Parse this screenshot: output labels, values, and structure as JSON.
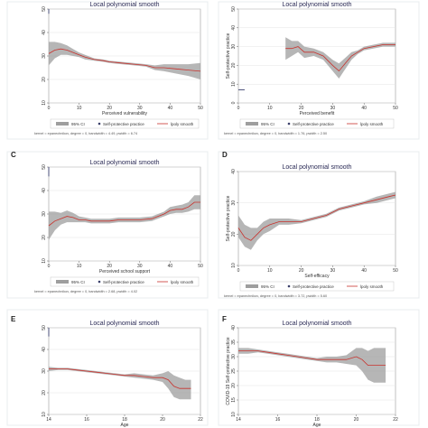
{
  "colors": {
    "band": "#9e9e9e",
    "line": "#c8322d",
    "frame": "#e8ecef"
  },
  "chart_data": [
    {
      "panel": "",
      "type": "line",
      "title": "Local polynomial smooth",
      "xlabel": "Perceived vulnerability",
      "ylabel": "",
      "xlim": [
        0,
        50
      ],
      "ylim": [
        10,
        50
      ],
      "xticks": [
        "0",
        "10",
        "20",
        "30",
        "40",
        "50"
      ],
      "yticks": [
        "10",
        "20",
        "30",
        "40",
        "50"
      ],
      "grid": true,
      "legend_position": "bottom",
      "legend": [
        "95% CI",
        "Self-protective practice",
        "lpoly smooth"
      ],
      "note": "kernel = epanechnikov, degree = 0, bandwidth = 4.49, pwidth = 6.74",
      "series": [
        {
          "x": [
            0,
            2,
            4,
            6,
            8,
            10,
            12,
            15,
            18,
            20,
            24,
            28,
            32,
            35,
            38,
            42,
            46,
            50
          ],
          "y": [
            31,
            32.5,
            33,
            32.5,
            31.5,
            30.5,
            29.5,
            28.5,
            28,
            27.5,
            27,
            26.5,
            26,
            25,
            25,
            24.5,
            24,
            23.5
          ],
          "lo": [
            26,
            29,
            30.5,
            30.5,
            30,
            29.5,
            28.5,
            28,
            27.5,
            27,
            26.5,
            26,
            25.5,
            24,
            23.5,
            22.5,
            21.5,
            20
          ],
          "hi": [
            36,
            36,
            35.5,
            34.5,
            33,
            31.5,
            30.5,
            29,
            28.5,
            28,
            27.5,
            27,
            26.5,
            26,
            26.5,
            26.5,
            26.5,
            27
          ]
        }
      ],
      "points": [
        {
          "x": 0,
          "y": 50
        },
        {
          "x": 0,
          "y": 48
        }
      ]
    },
    {
      "panel": "",
      "type": "line",
      "title": "Local polynomial smooth",
      "xlabel": "Perceived benefit",
      "ylabel": "Self-protective practice",
      "xlim": [
        0,
        50
      ],
      "ylim": [
        0,
        50
      ],
      "xticks": [
        "0",
        "10",
        "20",
        "30",
        "40",
        "50"
      ],
      "yticks": [
        "0",
        "10",
        "20",
        "30",
        "40",
        "50"
      ],
      "grid": true,
      "legend_position": "bottom",
      "legend": [
        "95% CI",
        "Self-protective practice",
        "lpoly smooth"
      ],
      "note": "kernel = epanechnikov, degree = 0, bandwidth = 1.76, pwidth = 2.50",
      "series": [
        {
          "x": [
            15,
            17,
            19,
            21,
            24,
            27,
            30,
            32,
            34,
            36,
            38,
            40,
            43,
            46,
            50
          ],
          "y": [
            29,
            29,
            30,
            27,
            27,
            25,
            20,
            17,
            21,
            25,
            27,
            29,
            30,
            31,
            31
          ],
          "lo": [
            23,
            25,
            27,
            24,
            25,
            23,
            17,
            13,
            18,
            23,
            26,
            28,
            29,
            30,
            30
          ],
          "hi": [
            35,
            33,
            33,
            30,
            29,
            27,
            23,
            21,
            24,
            27,
            28,
            30,
            31,
            32,
            32
          ]
        }
      ],
      "points": [
        {
          "x": 0,
          "y": 7
        },
        {
          "x": 2,
          "y": 7
        }
      ]
    },
    {
      "panel": "C",
      "type": "line",
      "title": "Local polynomial smooth",
      "xlabel": "Perceived school support",
      "ylabel": "",
      "xlim": [
        0,
        50
      ],
      "ylim": [
        10,
        50
      ],
      "xticks": [
        "0",
        "10",
        "20",
        "30",
        "40",
        "50"
      ],
      "yticks": [
        "10",
        "20",
        "30",
        "40",
        "50"
      ],
      "grid": true,
      "legend_position": "bottom",
      "legend": [
        "95% CI",
        "Self-protective practice",
        "lpoly smooth"
      ],
      "note": "kernel = epanechnikov, degree = 0, bandwidth = 2.68, pwidth = 4.02",
      "series": [
        {
          "x": [
            0,
            2,
            4,
            6,
            8,
            10,
            12,
            14,
            16,
            18,
            20,
            23,
            26,
            30,
            34,
            38,
            40,
            42,
            44,
            46,
            48,
            50
          ],
          "y": [
            25,
            27,
            28,
            29,
            28.5,
            27.5,
            27.5,
            27,
            27,
            27,
            27,
            27.5,
            27.5,
            27.5,
            28,
            30,
            31.5,
            32,
            32,
            33,
            35,
            35
          ],
          "lo": [
            19,
            23,
            25.5,
            26.5,
            26.5,
            26.5,
            26.5,
            26,
            26,
            26,
            26,
            26.5,
            26.5,
            26.5,
            27,
            29,
            30,
            30.5,
            30.5,
            31,
            32,
            32
          ],
          "hi": [
            31,
            31,
            30.5,
            31.5,
            30.5,
            29,
            28.5,
            28,
            28,
            28,
            28,
            28.5,
            28.5,
            28.5,
            29,
            31,
            33,
            33.5,
            34,
            35,
            38,
            38
          ]
        }
      ],
      "points": [
        {
          "x": 0,
          "y": 50
        },
        {
          "x": 0,
          "y": 46
        }
      ]
    },
    {
      "panel": "D",
      "type": "line",
      "title": "Local polynomial smooth",
      "xlabel": "Self-efficacy",
      "ylabel": "Self-protective practice",
      "xlim": [
        0,
        50
      ],
      "ylim": [
        10,
        40
      ],
      "xticks": [
        "0",
        "10",
        "20",
        "30",
        "40",
        "50"
      ],
      "yticks": [
        "10",
        "20",
        "30",
        "40"
      ],
      "grid": true,
      "legend_position": "bottom",
      "legend": [
        "95% CI",
        "Self-protective practice",
        "lpoly smooth"
      ],
      "note": "kernel = epanechnikov, degree = 0, bandwidth = 3.72, pwidth = 5.60",
      "series": [
        {
          "x": [
            0,
            2,
            4,
            6,
            8,
            10,
            13,
            16,
            20,
            24,
            28,
            32,
            36,
            40,
            44,
            48,
            50
          ],
          "y": [
            22,
            19,
            18,
            20,
            22,
            23,
            24,
            24,
            24,
            25,
            26,
            28,
            29,
            30,
            31,
            32,
            32.5
          ],
          "lo": [
            19,
            16,
            15,
            18,
            20,
            21,
            23,
            23,
            23.5,
            24.5,
            25.5,
            27.5,
            28.5,
            29.5,
            30,
            31,
            31.5
          ],
          "hi": [
            26,
            23,
            22,
            22,
            24,
            25,
            25,
            25,
            24.5,
            25.5,
            26.5,
            28.5,
            29.5,
            30.5,
            32,
            33,
            33.5
          ]
        }
      ],
      "points": []
    },
    {
      "panel": "E",
      "type": "line",
      "title": "Local polynomial smooth",
      "xlabel": "Age",
      "ylabel": "",
      "xlim": [
        14,
        22
      ],
      "ylim": [
        10,
        50
      ],
      "xticks": [
        "14",
        "16",
        "18",
        "20",
        "22"
      ],
      "yticks": [
        "10",
        "20",
        "30",
        "40",
        "50"
      ],
      "grid": true,
      "legend_position": "none",
      "legend": [],
      "note": "",
      "series": [
        {
          "x": [
            14,
            14.5,
            15,
            15.5,
            16,
            16.5,
            17,
            17.5,
            18,
            18.5,
            19,
            19.5,
            20,
            20.3,
            20.6,
            20.9,
            21.2,
            21.5
          ],
          "y": [
            31,
            31,
            31,
            30.5,
            30,
            29.5,
            29,
            28.5,
            28,
            28,
            27.5,
            27,
            27,
            26,
            23,
            22,
            22,
            22
          ],
          "lo": [
            30,
            30.5,
            30.5,
            30,
            29.5,
            29,
            28.5,
            28,
            27.5,
            27,
            26.5,
            26,
            25,
            22,
            18,
            17,
            17,
            17
          ],
          "hi": [
            32,
            31.5,
            31.5,
            31,
            30.5,
            30,
            29.5,
            29,
            28.5,
            29,
            28.5,
            28,
            29,
            30,
            28,
            27,
            26,
            26
          ]
        }
      ],
      "points": [
        {
          "x": 14,
          "y": 50
        },
        {
          "x": 14,
          "y": 46
        }
      ]
    },
    {
      "panel": "F",
      "type": "line",
      "title": "Local polynomial smooth",
      "xlabel": "Age",
      "ylabel": "COVID-19 Self-protective practice",
      "xlim": [
        14,
        22
      ],
      "ylim": [
        10,
        40
      ],
      "xticks": [
        "14",
        "16",
        "18",
        "20",
        "22"
      ],
      "yticks": [
        "10",
        "15",
        "20",
        "25",
        "30",
        "35",
        "40"
      ],
      "grid": true,
      "legend_position": "none",
      "legend": [],
      "note": "",
      "series": [
        {
          "x": [
            14,
            14.5,
            15,
            15.5,
            16,
            16.5,
            17,
            17.5,
            18,
            18.5,
            19,
            19.5,
            20,
            20.3,
            20.6,
            20.9,
            21.2,
            21.5
          ],
          "y": [
            32,
            32,
            32,
            31.5,
            31,
            30.5,
            30,
            29.5,
            29,
            29,
            29,
            29,
            30,
            29,
            27,
            27,
            27,
            27
          ],
          "lo": [
            31,
            31,
            31.5,
            31,
            30.5,
            30,
            29.5,
            29,
            28.5,
            28,
            28,
            27.5,
            27,
            25,
            22,
            21,
            21,
            21
          ],
          "hi": [
            33,
            33,
            32.5,
            32,
            31.5,
            31,
            30.5,
            30,
            29.5,
            30,
            30,
            30.5,
            33,
            33,
            32,
            33,
            33,
            33
          ]
        }
      ],
      "points": []
    }
  ]
}
